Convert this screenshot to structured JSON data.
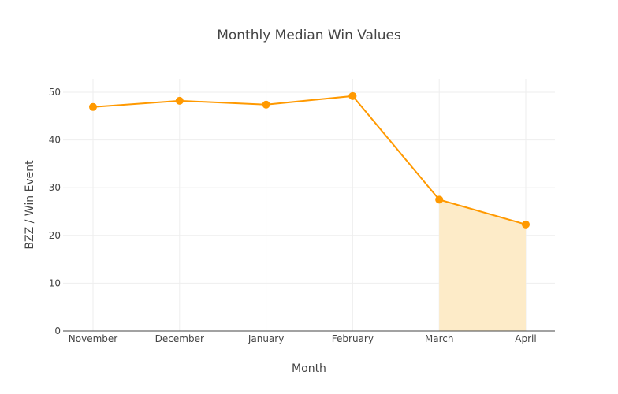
{
  "chart_data": {
    "type": "line",
    "title": "Monthly Median Win Values",
    "xlabel": "Month",
    "ylabel": "BZZ / Win Event",
    "categories": [
      "November",
      "December",
      "January",
      "February",
      "March",
      "April"
    ],
    "series": [
      {
        "values": [
          46.9,
          48.2,
          47.4,
          49.2,
          27.5,
          22.3
        ],
        "color": "#ff9900"
      }
    ],
    "shaded_region": {
      "from": "March",
      "to": "April",
      "color": "#fdebc8"
    },
    "ylim": [
      0,
      52.8
    ],
    "yticks": [
      0,
      10,
      20,
      30,
      40,
      50
    ],
    "grid": true,
    "legend": "none"
  }
}
